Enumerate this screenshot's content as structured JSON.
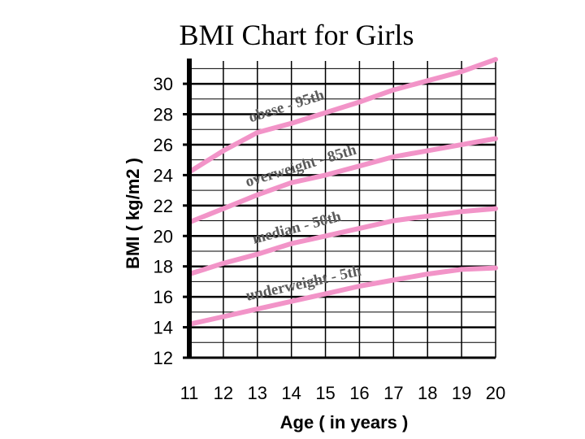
{
  "chart_data": {
    "type": "line",
    "title": "BMI Chart for Girls",
    "xlabel": "Age ( in years )",
    "ylabel": "BMI ( kg/m2 )",
    "xlim": [
      11,
      20
    ],
    "ylim": [
      12,
      31.5
    ],
    "x_ticks": [
      "11",
      "12",
      "13",
      "14",
      "15",
      "16",
      "17",
      "18",
      "19",
      "20"
    ],
    "y_ticks": [
      "12",
      "14",
      "16",
      "18",
      "20",
      "22",
      "24",
      "26",
      "28",
      "30"
    ],
    "grid": true,
    "line_color": "#f294c8",
    "x": [
      11,
      12,
      13,
      14,
      15,
      16,
      17,
      18,
      19,
      20
    ],
    "series": [
      {
        "name": "obese - 95th",
        "values": [
          24.2,
          25.6,
          26.8,
          27.4,
          28.1,
          28.8,
          29.6,
          30.2,
          30.8,
          31.6
        ]
      },
      {
        "name": "overweight - 85th",
        "values": [
          20.9,
          21.8,
          22.7,
          23.5,
          24.0,
          24.6,
          25.2,
          25.6,
          26.0,
          26.4
        ]
      },
      {
        "name": "median - 50th",
        "values": [
          17.5,
          18.2,
          18.8,
          19.5,
          20.0,
          20.5,
          21.0,
          21.3,
          21.6,
          21.8
        ]
      },
      {
        "name": "underweight - 5th",
        "values": [
          14.2,
          14.7,
          15.2,
          15.7,
          16.2,
          16.7,
          17.1,
          17.5,
          17.8,
          17.9
        ]
      }
    ]
  }
}
